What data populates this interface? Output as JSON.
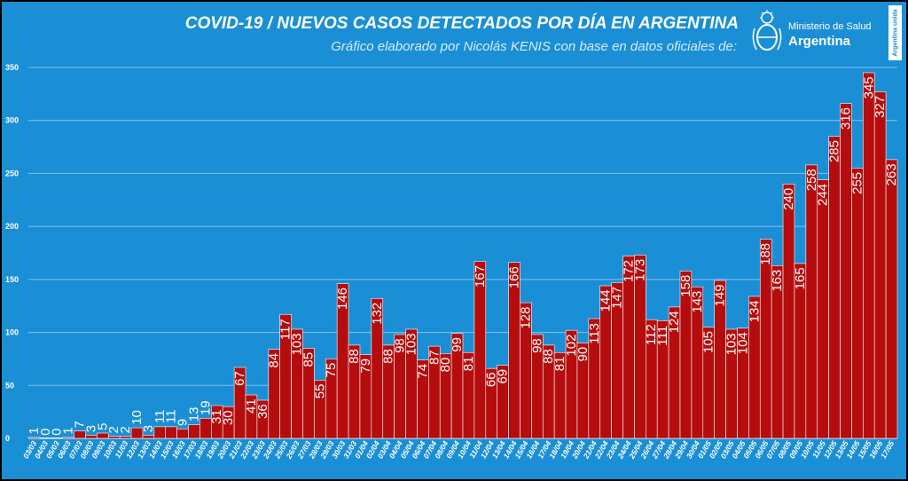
{
  "header": {
    "title": "COVID-19  /  NUEVOS CASOS DETECTADOS POR DÍA EN ARGENTINA",
    "subtitle": "Gráfico elaborado por Nicolás KENIS con base en datos oficiales de:"
  },
  "logo": {
    "line1": "Ministerio de Salud",
    "line2": "Argentina"
  },
  "badge": {
    "text": "Argentina unida"
  },
  "colors": {
    "background": "#1b8fd6",
    "bar": "#b50d0d",
    "bar_border": "#ffffff",
    "text": "#ffffff",
    "grid": "#7fc2ec"
  },
  "chart_data": {
    "type": "bar",
    "title": "COVID-19  /  NUEVOS CASOS DETECTADOS POR DÍA EN ARGENTINA",
    "xlabel": "",
    "ylabel": "",
    "ylim": [
      0,
      350
    ],
    "yticks": [
      0,
      50,
      100,
      150,
      200,
      250,
      300,
      350
    ],
    "grid": true,
    "categories": [
      "03/03",
      "04/03",
      "05/03",
      "06/03",
      "07/03",
      "08/03",
      "09/03",
      "10/03",
      "11/03",
      "12/03",
      "13/03",
      "14/03",
      "15/03",
      "16/03",
      "17/03",
      "18/03",
      "19/03",
      "20/03",
      "21/03",
      "22/03",
      "23/03",
      "24/03",
      "25/03",
      "26/03",
      "27/03",
      "28/03",
      "29/03",
      "30/03",
      "31/03",
      "01/04",
      "02/04",
      "03/04",
      "04/04",
      "05/04",
      "06/04",
      "07/04",
      "08/04",
      "09/04",
      "10/04",
      "11/04",
      "12/04",
      "13/04",
      "14/04",
      "15/04",
      "16/04",
      "17/04",
      "18/04",
      "19/04",
      "20/04",
      "21/04",
      "22/04",
      "23/04",
      "24/04",
      "25/04",
      "26/04",
      "27/04",
      "28/04",
      "29/04",
      "30/04",
      "01/05",
      "02/05",
      "03/05",
      "04/05",
      "05/05",
      "06/05",
      "07/05",
      "08/05",
      "09/05",
      "10/05",
      "11/05",
      "12/05",
      "13/05",
      "14/05",
      "15/05",
      "16/05",
      "17/05"
    ],
    "xtick_labels": [
      "03/03",
      "04/03",
      "05/03",
      "06/03",
      "07/03",
      "08/03",
      "09/03",
      "10/03",
      "11/03",
      "12/03",
      "13/03",
      "14/03",
      "15/03",
      "16/03",
      "17/03",
      "18/03",
      "19/03",
      "20/03",
      "21/03",
      "22/03",
      "23/03",
      "24/03",
      "25/03",
      "26/03",
      "27/03",
      "28/03",
      "29/03",
      "30/03",
      "31/03",
      "01/04",
      "02/04",
      "03/04",
      "04/04",
      "05/04",
      "06/04",
      "07/04",
      "08/04",
      "09/04",
      "10/04",
      "11/04",
      "12/04",
      "13/04",
      "14/04",
      "15/04",
      "16/04",
      "17/04",
      "18/04",
      "19/04",
      "20/04",
      "21/04",
      "22/04",
      "23/04",
      "24/04",
      "25/04",
      "26/04",
      "27/04",
      "28/04",
      "29/04",
      "30/04",
      "01/05",
      "02/05",
      "03/05",
      "04/05",
      "05/05",
      "06/05",
      "07/05",
      "08/05",
      "09/05",
      "10/05",
      "11/05",
      "12/05",
      "13/05",
      "14/05",
      "15/05",
      "16/05",
      "17/05"
    ],
    "values": [
      1,
      0,
      0,
      1,
      7,
      3,
      5,
      2,
      2,
      10,
      3,
      11,
      11,
      9,
      13,
      19,
      31,
      30,
      67,
      41,
      36,
      84,
      117,
      103,
      85,
      55,
      75,
      146,
      88,
      79,
      132,
      88,
      98,
      103,
      74,
      87,
      80,
      99,
      81,
      167,
      66,
      69,
      166,
      128,
      98,
      88,
      81,
      102,
      90,
      113,
      144,
      147,
      172,
      173,
      112,
      111,
      124,
      158,
      143,
      105,
      149,
      103,
      104,
      134,
      188,
      163,
      240,
      165,
      258,
      244,
      285,
      316,
      255,
      345,
      327,
      263
    ],
    "data_labels": [
      "1",
      "0",
      "0",
      "1",
      "7",
      "3",
      "5",
      "2",
      "2",
      "10",
      "3",
      "11",
      "11",
      "9",
      "13",
      "19",
      "31",
      "30",
      "67",
      "41",
      "36",
      "84",
      "117",
      "103",
      "85",
      "55",
      "75",
      "146",
      "88",
      "79",
      "132",
      "88",
      "98",
      "103",
      "74",
      "87",
      "80",
      "99",
      "81",
      "167",
      "66",
      "69",
      "166",
      "128",
      "98",
      "88",
      "81",
      "102",
      "90",
      "113",
      "144",
      "147",
      "172",
      "173",
      "112",
      "111",
      "124",
      "158",
      "143",
      "105",
      "149",
      "103",
      "104",
      "134",
      "188",
      "163",
      "240",
      "165",
      "258",
      "244",
      "285",
      "316",
      "255",
      "345",
      "327",
      "263"
    ]
  }
}
